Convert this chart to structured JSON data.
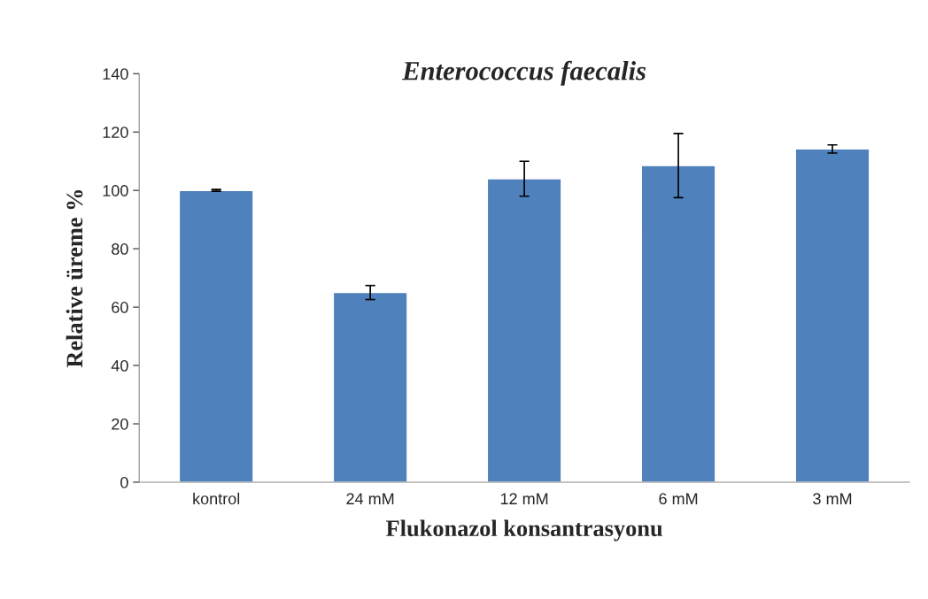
{
  "chart_data": {
    "type": "bar",
    "title": "Enterococcus faecalis",
    "xlabel": "Flukonazol konsantrasyonu",
    "ylabel": "Relative üreme %",
    "categories": [
      "kontrol",
      "24 mM",
      "12 mM",
      "6 mM",
      "3 mM"
    ],
    "values": [
      100,
      65,
      104,
      108.5,
      114.2
    ],
    "errors": [
      0.3,
      2.4,
      6,
      11,
      1.4
    ],
    "color": "#4f81bd",
    "ylim": [
      0,
      140
    ],
    "yticks": [
      0,
      20,
      40,
      60,
      80,
      100,
      120,
      140
    ],
    "grid": false,
    "legend": false
  }
}
